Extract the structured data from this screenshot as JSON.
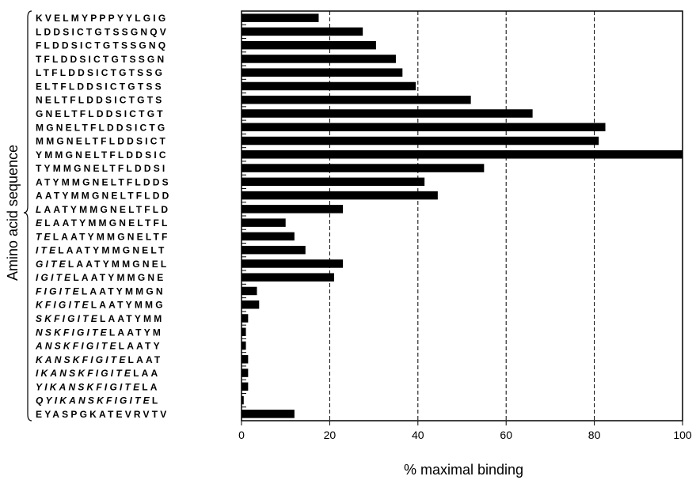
{
  "chart_data": {
    "type": "bar",
    "orientation": "horizontal",
    "xlabel": "% maximal binding",
    "ylabel": "Amino acid sequence",
    "xlim": [
      0,
      100
    ],
    "xticks": [
      0,
      20,
      40,
      60,
      80,
      100
    ],
    "grid": "vertical dashed lines at 20, 40, 60, 80",
    "bar_color": "#000000",
    "categories": [
      {
        "plain": "KVELMYPPPYYLGIG",
        "italic_prefix": ""
      },
      {
        "plain": "LDDSICTGTSSGNQV",
        "italic_prefix": ""
      },
      {
        "plain": "FLDDSICTGTSSGNQ",
        "italic_prefix": ""
      },
      {
        "plain": "TFLDDSICTGTSSGN",
        "italic_prefix": ""
      },
      {
        "plain": "LTFLDDSICTGTSSG",
        "italic_prefix": ""
      },
      {
        "plain": "ELTFLDDSICTGTSS",
        "italic_prefix": ""
      },
      {
        "plain": "NELTFLDDSICTGTS",
        "italic_prefix": ""
      },
      {
        "plain": "GNELTFLDDSICTGT",
        "italic_prefix": ""
      },
      {
        "plain": "MGNELTFLDDSICTG",
        "italic_prefix": ""
      },
      {
        "plain": "MMGNELTFLDDSICT",
        "italic_prefix": ""
      },
      {
        "plain": "YMMGNELTFLDDSIC",
        "italic_prefix": ""
      },
      {
        "plain": "TYMMGNELTFLDDSI",
        "italic_prefix": ""
      },
      {
        "plain": "ATYMMGNELTFLDDS",
        "italic_prefix": ""
      },
      {
        "plain": "AATYMMGNELTFLDD",
        "italic_prefix": ""
      },
      {
        "plain": "AATYMMGNELTFLD",
        "italic_prefix": "L"
      },
      {
        "plain": "LAATYMMGNELTFL",
        "italic_prefix": "E"
      },
      {
        "plain": "LAATYMMGNELTF",
        "italic_prefix": "TE"
      },
      {
        "plain": "LAATYMMGNELT",
        "italic_prefix": "ITE"
      },
      {
        "plain": "LAATYMMGNEL",
        "italic_prefix": "GITE"
      },
      {
        "plain": "LAATYMMGNE",
        "italic_prefix": "IGITE"
      },
      {
        "plain": "LAATYMMGN",
        "italic_prefix": "FIGITE"
      },
      {
        "plain": "LAATYMMG",
        "italic_prefix": "KFIGITE"
      },
      {
        "plain": "LAATYMM",
        "italic_prefix": "SKFIGITE"
      },
      {
        "plain": "LAATYM",
        "italic_prefix": "NSKFIGITE"
      },
      {
        "plain": "LAATY",
        "italic_prefix": "ANSKFIGITE"
      },
      {
        "plain": "LAAT",
        "italic_prefix": "KANSKFIGITE"
      },
      {
        "plain": "LAA",
        "italic_prefix": "IKANSKFIGITE"
      },
      {
        "plain": "LA",
        "italic_prefix": "YIKANSKFIGITE"
      },
      {
        "plain": "L",
        "italic_prefix": "QYIKANSKFIGITE"
      },
      {
        "plain": "EYASPGKATEVRVTV",
        "italic_prefix": ""
      }
    ],
    "values": [
      17.5,
      27.5,
      30.5,
      35,
      36.5,
      39.5,
      52,
      66,
      82.5,
      81,
      100,
      55,
      41.5,
      44.5,
      23,
      10,
      12,
      14.5,
      23,
      21,
      3.5,
      4,
      1.5,
      1,
      1,
      1.5,
      1.5,
      1.5,
      0.5,
      12
    ]
  }
}
